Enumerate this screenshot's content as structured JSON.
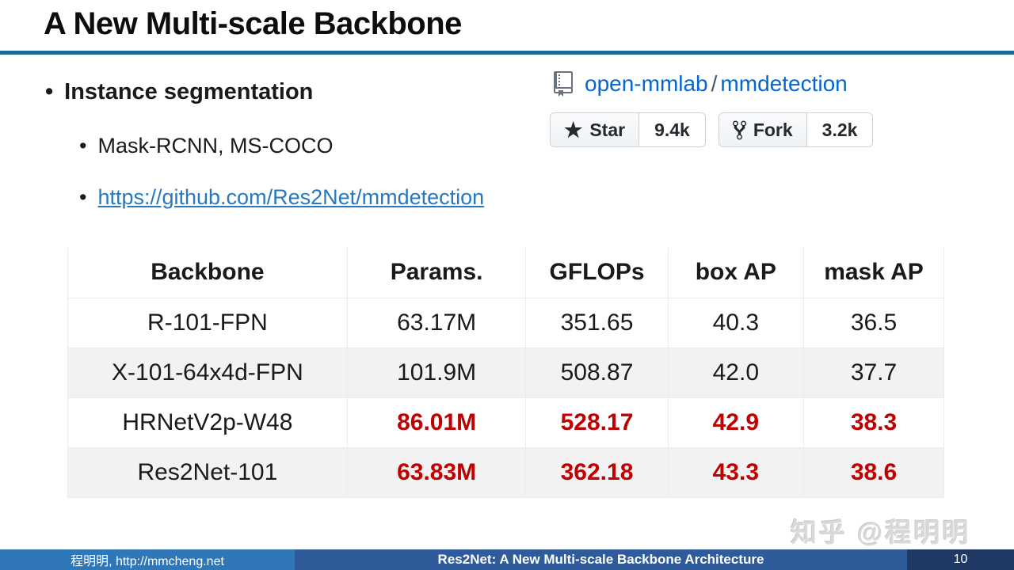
{
  "slide": {
    "title": "A New Multi-scale Backbone",
    "accent_color": "#1b6a96"
  },
  "bullets": {
    "level1": "Instance segmentation",
    "level2_1": "Mask-RCNN, MS-COCO",
    "level2_2_link": "https://github.com/Res2Net/mmdetection",
    "marker": "•"
  },
  "github_widget": {
    "owner": "open-mmlab",
    "separator": "/",
    "repo": "mmdetection",
    "star": {
      "label": "Star",
      "count": "9.4k",
      "glyph": "★"
    },
    "fork": {
      "label": "Fork",
      "count": "3.2k"
    }
  },
  "table": {
    "highlight_color": "#c00000",
    "columns": [
      "Backbone",
      "Params.",
      "GFLOPs",
      "box AP",
      "mask AP"
    ],
    "rows": [
      {
        "cells": [
          "R-101-FPN",
          "63.17M",
          "351.65",
          "40.3",
          "36.5"
        ],
        "highlight": false
      },
      {
        "cells": [
          "X-101-64x4d-FPN",
          "101.9M",
          "508.87",
          "42.0",
          "37.7"
        ],
        "highlight": false
      },
      {
        "cells": [
          "HRNetV2p-W48",
          "86.01M",
          "528.17",
          "42.9",
          "38.3"
        ],
        "highlight": true
      },
      {
        "cells": [
          "Res2Net-101",
          "63.83M",
          "362.18",
          "43.3",
          "38.6"
        ],
        "highlight": true
      }
    ]
  },
  "watermark": "知乎 @程明明",
  "footer": {
    "left": "程明明, http://mmcheng.net",
    "center": "Res2Net: A New Multi-scale Backbone Architecture",
    "page_number": "10"
  }
}
